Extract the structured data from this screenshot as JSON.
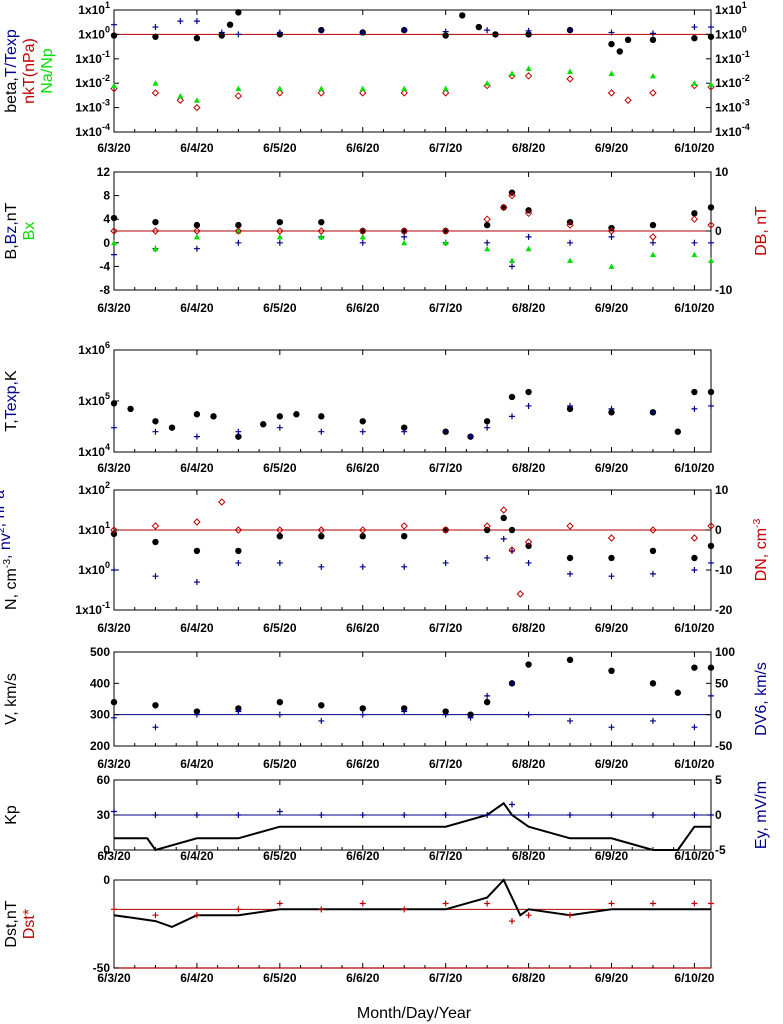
{
  "xlabel": "Month/Day/Year",
  "x_ticks": [
    "6/3/20",
    "6/4/20",
    "6/5/20",
    "6/6/20",
    "6/7/20",
    "6/8/20",
    "6/9/20",
    "6/10/20"
  ],
  "colors": {
    "black": "#000000",
    "blue": "#00008b",
    "red": "#c00000",
    "green": "#00e000",
    "refline": "#b00000"
  },
  "chart_data": [
    {
      "type": "scatter",
      "panel": "plasma-beta",
      "y_scale": "log",
      "ylim": [
        0.0001,
        10
      ],
      "left_label": [
        {
          "text": "beta,",
          "color": "#000000"
        },
        {
          "text": "T/Texp",
          "color": "#00008b"
        }
      ],
      "left_label2": [
        {
          "text": "nkT(nPa)",
          "color": "#c00000"
        }
      ],
      "left_label3": [
        {
          "text": "Na/Np",
          "color": "#00e000"
        }
      ],
      "left_ticks": [
        "1x10-4",
        "1x10-3",
        "1x10-2",
        "1x10-1",
        "1x100",
        "1x101"
      ],
      "right_ticks": [
        "1x10-4",
        "1x10-3",
        "1x10-2",
        "1x10-1",
        "1x100",
        "1x101"
      ],
      "ref_line": 1,
      "series": [
        {
          "color": "#000000",
          "marker": "dot",
          "x": [
            3.0,
            3.5,
            4.0,
            4.3,
            4.4,
            4.5,
            5.0,
            5.5,
            6.0,
            6.5,
            7.0,
            7.2,
            7.4,
            7.6,
            8.0,
            8.5,
            9.0,
            9.1,
            9.2,
            9.5,
            10.0,
            10.2
          ],
          "y": [
            0.9,
            0.8,
            0.7,
            0.9,
            2.5,
            8,
            1.0,
            1.5,
            1.2,
            1.5,
            0.9,
            6,
            2,
            1.0,
            1.0,
            1.5,
            0.4,
            0.2,
            0.6,
            0.6,
            0.7,
            0.8
          ]
        },
        {
          "color": "#00008b",
          "marker": "plus",
          "x": [
            3.0,
            3.5,
            3.8,
            4.0,
            4.3,
            4.5,
            5.0,
            5.5,
            6.0,
            6.5,
            7.0,
            7.5,
            8.0,
            8.5,
            9.0,
            9.5,
            10.0,
            10.2
          ],
          "y": [
            2.5,
            2.0,
            3.5,
            3.5,
            1.2,
            1.0,
            1.2,
            1.5,
            1.2,
            1.5,
            1.3,
            1.5,
            1.4,
            1.5,
            1.2,
            1.1,
            2.0,
            2.0
          ]
        },
        {
          "color": "#c00000",
          "marker": "diamond",
          "x": [
            3.0,
            3.5,
            3.8,
            4.0,
            4.5,
            5.0,
            5.5,
            6.0,
            6.5,
            7.0,
            7.5,
            7.8,
            8.0,
            8.5,
            9.0,
            9.2,
            9.5,
            10.0,
            10.2
          ],
          "y": [
            0.006,
            0.004,
            0.002,
            0.001,
            0.003,
            0.004,
            0.004,
            0.004,
            0.004,
            0.004,
            0.008,
            0.02,
            0.02,
            0.015,
            0.004,
            0.002,
            0.004,
            0.008,
            0.007
          ]
        },
        {
          "color": "#00e000",
          "marker": "triangle",
          "x": [
            3.0,
            3.5,
            3.8,
            4.0,
            4.5,
            5.0,
            5.5,
            6.0,
            6.5,
            7.0,
            7.5,
            7.8,
            8.0,
            8.5,
            9.0,
            9.5,
            10.0,
            10.2
          ],
          "y": [
            0.008,
            0.01,
            0.003,
            0.002,
            0.006,
            0.006,
            0.006,
            0.006,
            0.006,
            0.006,
            0.01,
            0.025,
            0.04,
            0.03,
            0.025,
            0.02,
            0.01,
            0.009
          ]
        }
      ]
    },
    {
      "type": "scatter",
      "panel": "magnetic-field",
      "ylim": [
        -8,
        12
      ],
      "y2lim": [
        -10,
        10
      ],
      "left_label": [
        {
          "text": "B,",
          "color": "#000000"
        },
        {
          "text": "Bz,",
          "color": "#00008b"
        },
        {
          "text": "nT",
          "color": "#000000"
        }
      ],
      "left_label2": [
        {
          "text": "Bx",
          "color": "#00e000"
        }
      ],
      "right_label": [
        {
          "text": "DB, nT",
          "color": "#c00000"
        }
      ],
      "left_ticks": [
        "-8",
        "-4",
        "0",
        "4",
        "8",
        "12"
      ],
      "right_ticks": [
        "-10",
        "0",
        "10"
      ],
      "ref_line_y2": 0,
      "series": [
        {
          "color": "#000000",
          "marker": "dot",
          "x": [
            3.0,
            3.5,
            4.0,
            4.5,
            5.0,
            5.5,
            6.0,
            6.5,
            7.0,
            7.5,
            7.7,
            7.8,
            8.0,
            8.5,
            9.0,
            9.5,
            10.0,
            10.2
          ],
          "y": [
            4.2,
            3.5,
            3.0,
            3.0,
            3.5,
            3.5,
            2.0,
            2.0,
            2.0,
            3.0,
            6,
            8.5,
            5.5,
            3.5,
            2.5,
            3.0,
            5.0,
            6.0
          ]
        },
        {
          "color": "#00008b",
          "marker": "plus",
          "x": [
            3.0,
            3.5,
            4.0,
            4.5,
            5.0,
            5.5,
            6.0,
            6.5,
            7.0,
            7.5,
            7.8,
            8.0,
            8.5,
            9.0,
            9.5,
            10.0,
            10.2
          ],
          "y": [
            -2,
            -1,
            -1,
            0,
            0,
            1,
            0,
            1,
            0,
            0,
            -4,
            1,
            0,
            1,
            0,
            0,
            0
          ]
        },
        {
          "color": "#00e000",
          "marker": "triangle",
          "x": [
            3.0,
            3.5,
            4.0,
            4.5,
            5.0,
            5.5,
            6.0,
            6.5,
            7.0,
            7.5,
            7.8,
            8.0,
            8.5,
            9.0,
            9.5,
            10.0,
            10.2
          ],
          "y": [
            0,
            -1,
            1,
            2,
            1,
            1,
            1,
            0,
            0,
            -1,
            -3,
            -1,
            -3,
            -4,
            -2,
            -2,
            -3
          ]
        },
        {
          "color": "#c00000",
          "marker": "diamond",
          "axis": "y2",
          "x": [
            3.0,
            3.5,
            4.0,
            4.5,
            5.0,
            5.5,
            6.0,
            6.5,
            7.0,
            7.5,
            7.7,
            7.8,
            8.0,
            8.5,
            9.0,
            9.5,
            10.0,
            10.2
          ],
          "y": [
            0,
            0,
            0,
            0,
            0,
            0,
            0,
            0,
            0,
            2,
            4,
            6,
            3,
            1,
            0,
            -1,
            2,
            1
          ]
        }
      ]
    },
    {
      "type": "scatter",
      "panel": "temperature",
      "y_scale": "log",
      "ylim": [
        10000,
        1000000
      ],
      "left_label": [
        {
          "text": "T,",
          "color": "#000000"
        },
        {
          "text": "Texp,",
          "color": "#00008b"
        },
        {
          "text": "K",
          "color": "#000000"
        }
      ],
      "left_ticks": [
        "1x104",
        "1x105",
        "1x106"
      ],
      "series": [
        {
          "color": "#000000",
          "marker": "dot",
          "x": [
            3.0,
            3.2,
            3.5,
            3.7,
            4.0,
            4.2,
            4.5,
            4.8,
            5.0,
            5.2,
            5.5,
            6.0,
            6.5,
            7.0,
            7.3,
            7.5,
            7.8,
            8.0,
            8.5,
            9.0,
            9.5,
            9.8,
            10.0,
            10.2
          ],
          "y": [
            90000,
            70000,
            40000,
            30000,
            55000,
            50000,
            20000,
            35000,
            50000,
            55000,
            50000,
            40000,
            30000,
            25000,
            20000,
            40000,
            120000,
            150000,
            70000,
            60000,
            60000,
            25000,
            150000,
            150000
          ]
        },
        {
          "color": "#00008b",
          "marker": "plus",
          "x": [
            3.0,
            3.5,
            4.0,
            4.5,
            5.0,
            5.5,
            6.0,
            6.5,
            7.0,
            7.3,
            7.5,
            7.8,
            8.0,
            8.5,
            9.0,
            9.5,
            10.0,
            10.2
          ],
          "y": [
            30000,
            25000,
            20000,
            25000,
            30000,
            25000,
            25000,
            25000,
            25000,
            20000,
            30000,
            50000,
            80000,
            80000,
            70000,
            60000,
            70000,
            80000
          ]
        }
      ]
    },
    {
      "type": "scatter",
      "panel": "density",
      "y_scale": "log",
      "ylim": [
        0.1,
        100
      ],
      "y2lim": [
        -20,
        10
      ],
      "left_label": [
        {
          "text": "N, cm",
          "color": "#000000",
          "sup": "-3"
        },
        {
          "text": ", nv",
          "color": "#00008b",
          "sup": "2"
        },
        {
          "text": ", nPa",
          "color": "#00008b"
        }
      ],
      "right_label": [
        {
          "text": "DN, cm",
          "color": "#c00000",
          "sup": "-3"
        }
      ],
      "left_ticks": [
        "1x10-1",
        "1x100",
        "1x101",
        "1x102"
      ],
      "right_ticks": [
        "-20",
        "-10",
        "0",
        "10"
      ],
      "ref_line": 10,
      "series": [
        {
          "color": "#000000",
          "marker": "dot",
          "x": [
            3.0,
            3.5,
            4.0,
            4.5,
            5.0,
            5.5,
            6.0,
            6.5,
            7.0,
            7.5,
            7.7,
            7.8,
            8.0,
            8.5,
            9.0,
            9.5,
            10.0,
            10.2
          ],
          "y": [
            8,
            5,
            3,
            3,
            7,
            7,
            7,
            7,
            10,
            10,
            20,
            10,
            4,
            2,
            2,
            3,
            2,
            4
          ]
        },
        {
          "color": "#00008b",
          "marker": "plus",
          "x": [
            3.0,
            3.5,
            4.0,
            4.5,
            5.0,
            5.5,
            6.0,
            6.5,
            7.0,
            7.5,
            7.7,
            7.8,
            8.0,
            8.5,
            9.0,
            9.5,
            10.0,
            10.2
          ],
          "y": [
            1,
            0.7,
            0.5,
            1.5,
            1.5,
            1.2,
            1.2,
            1.2,
            1.5,
            2,
            6,
            3,
            1.5,
            0.8,
            0.7,
            0.8,
            1,
            1.5
          ]
        },
        {
          "color": "#c00000",
          "marker": "diamond",
          "axis": "y2",
          "x": [
            3.0,
            3.5,
            4.0,
            4.3,
            4.5,
            5.0,
            5.5,
            6.0,
            6.5,
            7.0,
            7.5,
            7.7,
            7.8,
            7.9,
            8.0,
            8.5,
            9.0,
            9.5,
            10.0,
            10.2
          ],
          "y": [
            0,
            1,
            2,
            7,
            0,
            0,
            0,
            0,
            1,
            0,
            1,
            5,
            -5,
            -16,
            -3,
            1,
            -2,
            0,
            -2,
            1
          ]
        }
      ]
    },
    {
      "type": "scatter",
      "panel": "velocity",
      "ylim": [
        200,
        500
      ],
      "y2lim": [
        -50,
        100
      ],
      "left_label": [
        {
          "text": "V, km/s",
          "color": "#000000"
        }
      ],
      "right_label": [
        {
          "text": "DV6, km/s",
          "color": "#00008b"
        }
      ],
      "left_ticks": [
        "200",
        "300",
        "400",
        "500"
      ],
      "right_ticks": [
        "-50",
        "0",
        "50",
        "100"
      ],
      "ref_line_y2": 0,
      "series": [
        {
          "color": "#000000",
          "marker": "dot",
          "x": [
            3.0,
            3.5,
            4.0,
            4.5,
            5.0,
            5.5,
            6.0,
            6.5,
            7.0,
            7.3,
            7.5,
            7.8,
            8.0,
            8.5,
            9.0,
            9.5,
            9.8,
            10.0,
            10.2
          ],
          "y": [
            340,
            330,
            310,
            320,
            340,
            330,
            320,
            320,
            310,
            300,
            340,
            400,
            460,
            475,
            440,
            400,
            370,
            450,
            450
          ]
        },
        {
          "color": "#00008b",
          "marker": "plus",
          "axis": "y2",
          "x": [
            3.0,
            3.5,
            4.0,
            4.5,
            5.0,
            5.5,
            6.0,
            6.5,
            7.0,
            7.3,
            7.5,
            7.8,
            8.0,
            8.5,
            9.0,
            9.5,
            10.0,
            10.2
          ],
          "y": [
            -5,
            -20,
            0,
            5,
            0,
            -10,
            0,
            5,
            0,
            -5,
            30,
            50,
            0,
            -10,
            -20,
            -10,
            -20,
            30
          ]
        }
      ]
    },
    {
      "type": "line",
      "panel": "kp-ey",
      "ylim": [
        0,
        60
      ],
      "y2lim": [
        -5,
        5
      ],
      "left_label": [
        {
          "text": "Kp",
          "color": "#000000"
        }
      ],
      "right_label": [
        {
          "text": "Ey, mV/m",
          "color": "#00008b"
        }
      ],
      "left_ticks": [
        "0",
        "30",
        "60"
      ],
      "right_ticks": [
        "-5",
        "0",
        "5"
      ],
      "ref_line_y2": 0,
      "series": [
        {
          "color": "#000000",
          "marker": "line",
          "x": [
            3.0,
            3.4,
            3.5,
            4.0,
            4.2,
            4.5,
            5.0,
            5.5,
            6.0,
            6.5,
            7.0,
            7.5,
            7.7,
            7.8,
            8.0,
            8.5,
            9.0,
            9.5,
            9.8,
            10.0,
            10.2
          ],
          "y": [
            10,
            10,
            0,
            10,
            10,
            10,
            20,
            20,
            20,
            20,
            20,
            30,
            40,
            30,
            20,
            10,
            10,
            0,
            0,
            20,
            20
          ]
        },
        {
          "color": "#00008b",
          "marker": "plus",
          "axis": "y2",
          "x": [
            3.0,
            3.5,
            4.0,
            4.5,
            5.0,
            5.5,
            6.0,
            6.5,
            7.0,
            7.5,
            7.8,
            8.0,
            8.5,
            9.0,
            9.5,
            10.0,
            10.2
          ],
          "y": [
            0.5,
            0,
            0,
            0,
            0.5,
            0,
            0,
            0,
            0,
            0,
            1.5,
            0,
            0,
            0,
            0,
            0,
            0
          ]
        }
      ]
    },
    {
      "type": "line",
      "panel": "dst",
      "ylim": [
        -50,
        25
      ],
      "left_label": [
        {
          "text": "Dst,nT",
          "color": "#000000"
        }
      ],
      "left_label2": [
        {
          "text": "Dst*",
          "color": "#c00000"
        }
      ],
      "left_ticks": [
        "-50",
        "0"
      ],
      "ref_line": 0,
      "ref_line_bottom": -50,
      "series": [
        {
          "color": "#000000",
          "marker": "line",
          "x": [
            3.0,
            3.5,
            3.7,
            4.0,
            4.5,
            5.0,
            5.5,
            6.0,
            6.5,
            7.0,
            7.5,
            7.7,
            7.8,
            7.9,
            8.0,
            8.5,
            9.0,
            9.5,
            10.0,
            10.2
          ],
          "y": [
            -5,
            -10,
            -15,
            -5,
            -5,
            0,
            0,
            0,
            0,
            0,
            10,
            25,
            10,
            -5,
            0,
            -5,
            0,
            0,
            0,
            0
          ]
        },
        {
          "color": "#c00000",
          "marker": "plus",
          "x": [
            3.0,
            3.5,
            4.0,
            4.5,
            5.0,
            5.5,
            6.0,
            6.5,
            7.0,
            7.5,
            7.8,
            8.0,
            8.5,
            9.0,
            9.5,
            10.0,
            10.2
          ],
          "y": [
            0,
            -5,
            -5,
            0,
            5,
            0,
            5,
            0,
            5,
            5,
            -10,
            -5,
            -5,
            5,
            5,
            5,
            5
          ]
        }
      ]
    }
  ]
}
